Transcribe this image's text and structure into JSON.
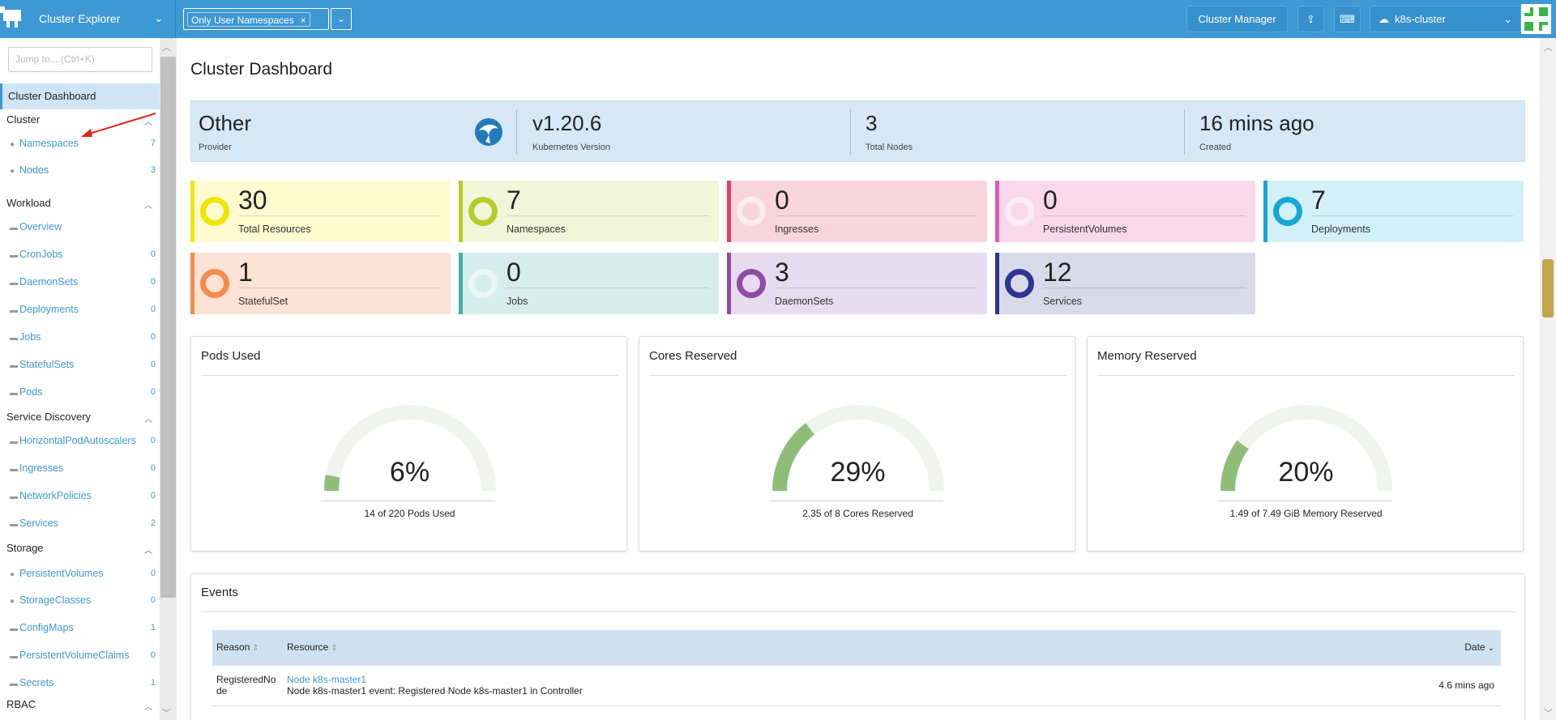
{
  "header": {
    "app_title": "Cluster Explorer",
    "namespace_filter": "Only User Namespaces",
    "cluster_manager_label": "Cluster Manager",
    "cluster_name": "k8s-cluster",
    "accent_color": "#3d98d3"
  },
  "sidebar": {
    "jump_placeholder": "Jump to... (Ctrl+K)",
    "active_item": "Cluster Dashboard",
    "groups": [
      {
        "label": "Cluster",
        "items": [
          {
            "label": "Namespaces",
            "count": "7"
          },
          {
            "label": "Nodes",
            "count": "3"
          }
        ]
      },
      {
        "label": "Workload",
        "items": [
          {
            "label": "Overview",
            "count": ""
          },
          {
            "label": "CronJobs",
            "count": "0"
          },
          {
            "label": "DaemonSets",
            "count": "0"
          },
          {
            "label": "Deployments",
            "count": "0"
          },
          {
            "label": "Jobs",
            "count": "0"
          },
          {
            "label": "StatefulSets",
            "count": "0"
          },
          {
            "label": "Pods",
            "count": "0"
          }
        ]
      },
      {
        "label": "Service Discovery",
        "items": [
          {
            "label": "HorizontalPodAutoscalers",
            "count": "0"
          },
          {
            "label": "Ingresses",
            "count": "0"
          },
          {
            "label": "NetworkPolicies",
            "count": "0"
          },
          {
            "label": "Services",
            "count": "2"
          }
        ]
      },
      {
        "label": "Storage",
        "items": [
          {
            "label": "PersistentVolumes",
            "count": "0"
          },
          {
            "label": "StorageClasses",
            "count": "0"
          },
          {
            "label": "ConfigMaps",
            "count": "1"
          },
          {
            "label": "PersistentVolumeClaims",
            "count": "0"
          },
          {
            "label": "Secrets",
            "count": "1"
          }
        ]
      },
      {
        "label": "RBAC",
        "items": []
      }
    ]
  },
  "dashboard": {
    "title": "Cluster Dashboard",
    "banner": [
      {
        "value": "Other",
        "label": "Provider"
      },
      {
        "value": "v1.20.6",
        "label": "Kubernetes Version"
      },
      {
        "value": "3",
        "label": "Total Nodes"
      },
      {
        "value": "16 mins ago",
        "label": "Created"
      }
    ],
    "cards": [
      {
        "value": "30",
        "label": "Total Resources",
        "color": "#f2e500",
        "bg": "#fffbd0"
      },
      {
        "value": "7",
        "label": "Namespaces",
        "color": "#b6cc2a",
        "bg": "#f1f6d8"
      },
      {
        "value": "0",
        "label": "Ingresses",
        "color": "#e04168",
        "bg": "#f8d5dc"
      },
      {
        "value": "0",
        "label": "PersistentVolumes",
        "color": "#e25bb3",
        "bg": "#f9d8ea"
      },
      {
        "value": "7",
        "label": "Deployments",
        "color": "#13a8d5",
        "bg": "#d3eff8"
      },
      {
        "value": "1",
        "label": "StatefulSet",
        "color": "#f68a4d",
        "bg": "#fbe3d5"
      },
      {
        "value": "0",
        "label": "Jobs",
        "color": "#3fb0a3",
        "bg": "#d6eeeb"
      },
      {
        "value": "3",
        "label": "DaemonSets",
        "color": "#8f4ba5",
        "bg": "#e7dcef"
      },
      {
        "value": "12",
        "label": "Services",
        "color": "#2d3592",
        "bg": "#d8dae9"
      }
    ],
    "gauges": [
      {
        "title": "Pods Used",
        "percent": "6%",
        "fraction": 0.06,
        "subtitle": "14 of 220 Pods Used"
      },
      {
        "title": "Cores Reserved",
        "percent": "29%",
        "fraction": 0.29,
        "subtitle": "2.35 of 8 Cores Reserved"
      },
      {
        "title": "Memory Reserved",
        "percent": "20%",
        "fraction": 0.2,
        "subtitle": "1.49 of 7.49 GiB Memory Reserved"
      }
    ]
  },
  "events": {
    "title": "Events",
    "columns": [
      "Reason",
      "Resource",
      "Date"
    ],
    "rows": [
      {
        "reason": "RegisteredNode",
        "resource": "Node k8s-master1",
        "message": "Node k8s-master1 event: Registered Node k8s-master1 in Controller",
        "date": "4.6 mins ago"
      }
    ]
  }
}
